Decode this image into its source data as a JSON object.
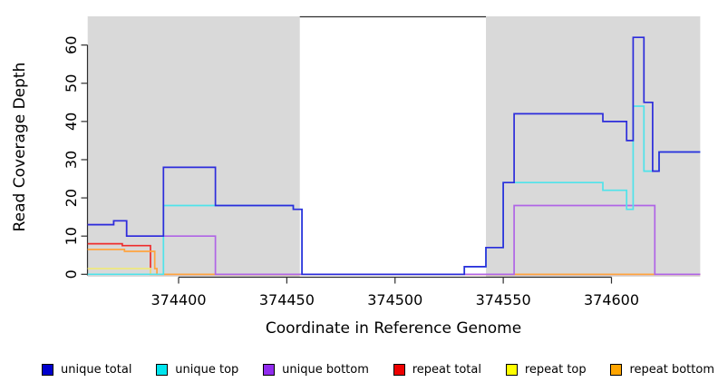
{
  "chart_data": {
    "type": "step-line",
    "title": "",
    "xlabel": "Coordinate in Reference Genome",
    "ylabel": "Read Coverage Depth",
    "x_ticks": [
      374400,
      374450,
      374500,
      374550,
      374600
    ],
    "y_ticks": [
      0,
      10,
      20,
      30,
      40,
      50,
      60
    ],
    "xlim": [
      374358,
      374641
    ],
    "ylim": [
      0,
      67.5
    ],
    "grid": false,
    "legend_position": "bottom",
    "shade_color": "#D9D9D9",
    "shaded_regions": [
      [
        374358,
        374456
      ],
      [
        374542,
        374641
      ]
    ],
    "series": [
      {
        "name": "repeat total",
        "color": "#EE2C2C",
        "end": 374641,
        "points": [
          [
            374358,
            8
          ],
          [
            374374,
            7.5
          ],
          [
            374387,
            0
          ]
        ]
      },
      {
        "name": "repeat top",
        "color": "#EFE87E",
        "end": 374392,
        "points": [
          [
            374358,
            1.5
          ],
          [
            374387,
            0
          ]
        ]
      },
      {
        "name": "repeat bottom",
        "color": "#FFA43F",
        "end": 374620,
        "points": [
          [
            374358,
            6.5
          ],
          [
            374375,
            6
          ],
          [
            374389,
            1.5
          ],
          [
            374390,
            0
          ]
        ]
      },
      {
        "name": "unique bottom",
        "color": "#B065E6",
        "end": 374641,
        "points": [
          [
            374358,
            13
          ],
          [
            374370,
            14
          ],
          [
            374376,
            10
          ],
          [
            374417,
            0
          ],
          [
            374555,
            18
          ],
          [
            374620,
            0
          ]
        ]
      },
      {
        "name": "unique top",
        "color": "#4FE3EA",
        "end": 374641,
        "points": [
          [
            374358,
            0
          ],
          [
            374393,
            18
          ],
          [
            374453,
            17
          ],
          [
            374457,
            0
          ],
          [
            374532,
            2
          ],
          [
            374542,
            7
          ],
          [
            374550,
            24
          ],
          [
            374596,
            22
          ],
          [
            374607,
            17
          ],
          [
            374610,
            44
          ],
          [
            374615,
            27
          ],
          [
            374622,
            32
          ]
        ]
      },
      {
        "name": "unique total",
        "color": "#2C2CDB",
        "end": 374641,
        "points": [
          [
            374358,
            13
          ],
          [
            374370,
            14
          ],
          [
            374376,
            10
          ],
          [
            374393,
            28
          ],
          [
            374417,
            18
          ],
          [
            374453,
            17
          ],
          [
            374457,
            0
          ],
          [
            374532,
            2
          ],
          [
            374542,
            7
          ],
          [
            374550,
            24
          ],
          [
            374555,
            42
          ],
          [
            374596,
            40
          ],
          [
            374607,
            35
          ],
          [
            374610,
            62
          ],
          [
            374615,
            45
          ],
          [
            374619,
            27
          ],
          [
            374622,
            32
          ]
        ]
      }
    ]
  },
  "legend": {
    "items": [
      {
        "label": "unique total",
        "color": "#0000CD"
      },
      {
        "label": "unique top",
        "color": "#00E5EE"
      },
      {
        "label": "unique bottom",
        "color": "#912CEE"
      },
      {
        "label": "repeat total",
        "color": "#EE0000"
      },
      {
        "label": "repeat top",
        "color": "#FFFF00"
      },
      {
        "label": "repeat bottom",
        "color": "#FFA500"
      }
    ]
  }
}
